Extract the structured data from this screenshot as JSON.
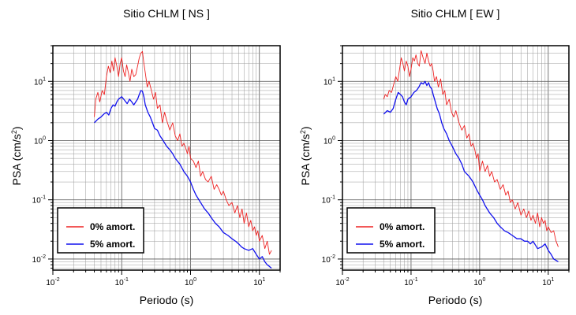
{
  "chart_data": [
    {
      "type": "line",
      "title": "Sitio CHLM [ NS ]",
      "xlabel": "Periodo (s)",
      "ylabel": "PSA (cm/s2)",
      "ylabel_base": "PSA (cm/s",
      "ylabel_sup": "2",
      "ylabel_tail": ")",
      "xscale": "log",
      "yscale": "log",
      "xlim": [
        0.01,
        20
      ],
      "ylim": [
        0.0065,
        40
      ],
      "grid": true,
      "legend_position": "bottom-left",
      "xticks": [
        {
          "value": 0.01,
          "base": "10",
          "exp": "-2"
        },
        {
          "value": 0.1,
          "base": "10",
          "exp": "-1"
        },
        {
          "value": 1,
          "base": "10",
          "exp": "0"
        },
        {
          "value": 10,
          "base": "10",
          "exp": "1"
        }
      ],
      "yticks": [
        {
          "value": 0.01,
          "base": "10",
          "exp": "-2"
        },
        {
          "value": 0.1,
          "base": "10",
          "exp": "-1"
        },
        {
          "value": 1,
          "base": "10",
          "exp": "0"
        },
        {
          "value": 10,
          "base": "10",
          "exp": "1"
        }
      ],
      "series": [
        {
          "name": "0% amort.",
          "color": "#ee2222",
          "x": [
            0.04,
            0.042,
            0.045,
            0.048,
            0.052,
            0.056,
            0.06,
            0.064,
            0.068,
            0.072,
            0.076,
            0.08,
            0.085,
            0.09,
            0.095,
            0.1,
            0.106,
            0.112,
            0.118,
            0.125,
            0.132,
            0.14,
            0.15,
            0.16,
            0.17,
            0.18,
            0.19,
            0.2,
            0.21,
            0.22,
            0.235,
            0.25,
            0.27,
            0.29,
            0.31,
            0.33,
            0.36,
            0.39,
            0.42,
            0.45,
            0.5,
            0.55,
            0.6,
            0.65,
            0.7,
            0.75,
            0.8,
            0.85,
            0.9,
            0.95,
            1.0,
            1.1,
            1.2,
            1.3,
            1.4,
            1.5,
            1.65,
            1.8,
            2.0,
            2.2,
            2.4,
            2.6,
            2.8,
            3.0,
            3.3,
            3.6,
            4.0,
            4.4,
            4.8,
            5.2,
            5.6,
            6.0,
            6.5,
            7.0,
            7.5,
            8.0,
            8.5,
            9.0,
            9.5,
            10.0,
            11.0,
            12.0,
            13.0,
            14.0,
            15.0
          ],
          "values": [
            2.5,
            5.0,
            6.5,
            4.5,
            7.0,
            6.0,
            12.0,
            18.0,
            14.0,
            22.0,
            15.0,
            25.0,
            18.0,
            12.0,
            20.0,
            25.0,
            15.0,
            12.0,
            19.0,
            14.0,
            10.0,
            16.0,
            12.0,
            13.0,
            18.0,
            25.0,
            30.0,
            32.0,
            20.0,
            14.0,
            8.0,
            10.0,
            7.0,
            5.0,
            6.5,
            3.5,
            4.0,
            2.0,
            3.0,
            2.2,
            1.5,
            2.0,
            1.2,
            1.0,
            1.3,
            0.8,
            0.9,
            0.75,
            0.6,
            0.8,
            0.5,
            0.45,
            0.35,
            0.45,
            0.25,
            0.3,
            0.22,
            0.2,
            0.25,
            0.15,
            0.18,
            0.15,
            0.12,
            0.14,
            0.1,
            0.08,
            0.09,
            0.06,
            0.08,
            0.05,
            0.07,
            0.04,
            0.06,
            0.035,
            0.045,
            0.03,
            0.035,
            0.025,
            0.03,
            0.02,
            0.025,
            0.015,
            0.02,
            0.012,
            0.014
          ]
        },
        {
          "name": "5% amort.",
          "color": "#1111ee",
          "x": [
            0.04,
            0.045,
            0.05,
            0.055,
            0.06,
            0.065,
            0.07,
            0.075,
            0.08,
            0.085,
            0.09,
            0.1,
            0.11,
            0.12,
            0.13,
            0.14,
            0.15,
            0.16,
            0.17,
            0.18,
            0.19,
            0.2,
            0.21,
            0.22,
            0.24,
            0.26,
            0.28,
            0.3,
            0.33,
            0.36,
            0.4,
            0.45,
            0.5,
            0.55,
            0.6,
            0.7,
            0.8,
            0.9,
            1.0,
            1.1,
            1.2,
            1.4,
            1.6,
            1.8,
            2.0,
            2.3,
            2.6,
            3.0,
            3.5,
            4.0,
            4.5,
            5.0,
            5.5,
            6.0,
            7.0,
            8.0,
            9.0,
            10.0,
            11.0,
            12.0,
            13.0,
            14.0,
            15.0
          ],
          "values": [
            2.0,
            2.3,
            2.5,
            2.8,
            3.0,
            2.7,
            3.5,
            4.0,
            3.8,
            4.5,
            5.0,
            5.5,
            4.8,
            4.2,
            5.0,
            4.5,
            4.0,
            4.5,
            5.0,
            6.0,
            7.0,
            6.8,
            5.5,
            4.0,
            3.0,
            2.5,
            2.0,
            1.6,
            1.5,
            1.2,
            1.0,
            0.8,
            0.7,
            0.6,
            0.5,
            0.4,
            0.3,
            0.25,
            0.2,
            0.15,
            0.12,
            0.09,
            0.07,
            0.06,
            0.05,
            0.04,
            0.035,
            0.028,
            0.025,
            0.022,
            0.02,
            0.018,
            0.016,
            0.015,
            0.014,
            0.015,
            0.012,
            0.01,
            0.011,
            0.009,
            0.008,
            0.0075,
            0.007
          ]
        }
      ]
    },
    {
      "type": "line",
      "title": "Sitio CHLM [ EW ]",
      "xlabel": "Periodo (s)",
      "ylabel": "PSA (cm/s2)",
      "ylabel_base": "PSA (cm/s",
      "ylabel_sup": "2",
      "ylabel_tail": ")",
      "xscale": "log",
      "yscale": "log",
      "xlim": [
        0.01,
        20
      ],
      "ylim": [
        0.0065,
        40
      ],
      "grid": true,
      "legend_position": "bottom-left",
      "xticks": [
        {
          "value": 0.01,
          "base": "10",
          "exp": "-2"
        },
        {
          "value": 0.1,
          "base": "10",
          "exp": "-1"
        },
        {
          "value": 1,
          "base": "10",
          "exp": "0"
        },
        {
          "value": 10,
          "base": "10",
          "exp": "1"
        }
      ],
      "yticks": [
        {
          "value": 0.01,
          "base": "10",
          "exp": "-2"
        },
        {
          "value": 0.1,
          "base": "10",
          "exp": "-1"
        },
        {
          "value": 1,
          "base": "10",
          "exp": "0"
        },
        {
          "value": 10,
          "base": "10",
          "exp": "1"
        }
      ],
      "series": [
        {
          "name": "0% amort.",
          "color": "#ee2222",
          "x": [
            0.04,
            0.042,
            0.045,
            0.048,
            0.052,
            0.056,
            0.06,
            0.064,
            0.068,
            0.072,
            0.076,
            0.08,
            0.085,
            0.09,
            0.095,
            0.1,
            0.106,
            0.112,
            0.118,
            0.125,
            0.132,
            0.14,
            0.15,
            0.16,
            0.17,
            0.18,
            0.19,
            0.2,
            0.21,
            0.22,
            0.235,
            0.25,
            0.27,
            0.29,
            0.31,
            0.33,
            0.36,
            0.39,
            0.42,
            0.45,
            0.5,
            0.55,
            0.6,
            0.65,
            0.7,
            0.75,
            0.8,
            0.85,
            0.9,
            0.95,
            1.0,
            1.1,
            1.2,
            1.3,
            1.4,
            1.5,
            1.65,
            1.8,
            2.0,
            2.2,
            2.4,
            2.6,
            2.8,
            3.0,
            3.3,
            3.6,
            4.0,
            4.4,
            4.8,
            5.2,
            5.6,
            6.0,
            6.5,
            7.0,
            7.5,
            8.0,
            8.5,
            9.0,
            9.5,
            10.0,
            11.0,
            12.0,
            13.0,
            14.0
          ],
          "values": [
            5.0,
            6.0,
            5.5,
            7.0,
            6.5,
            9.0,
            12.0,
            10.0,
            16.0,
            25.0,
            20.0,
            15.0,
            22.0,
            18.0,
            12.0,
            16.0,
            25.0,
            22.0,
            28.0,
            20.0,
            18.0,
            33.0,
            25.0,
            20.0,
            30.0,
            22.0,
            18.0,
            20.0,
            15.0,
            10.0,
            12.0,
            8.0,
            11.0,
            6.0,
            7.0,
            4.0,
            5.0,
            3.0,
            2.5,
            3.2,
            2.0,
            1.5,
            1.8,
            1.1,
            1.3,
            0.8,
            0.9,
            0.7,
            0.5,
            0.6,
            0.3,
            0.45,
            0.3,
            0.38,
            0.25,
            0.3,
            0.2,
            0.22,
            0.15,
            0.18,
            0.12,
            0.14,
            0.09,
            0.1,
            0.07,
            0.09,
            0.055,
            0.07,
            0.05,
            0.065,
            0.045,
            0.055,
            0.04,
            0.06,
            0.035,
            0.05,
            0.04,
            0.045,
            0.03,
            0.035,
            0.028,
            0.03,
            0.02,
            0.016
          ]
        },
        {
          "name": "5% amort.",
          "color": "#1111ee",
          "x": [
            0.04,
            0.045,
            0.05,
            0.055,
            0.06,
            0.065,
            0.07,
            0.075,
            0.08,
            0.085,
            0.09,
            0.1,
            0.11,
            0.12,
            0.13,
            0.14,
            0.15,
            0.16,
            0.17,
            0.18,
            0.19,
            0.2,
            0.21,
            0.22,
            0.24,
            0.26,
            0.28,
            0.3,
            0.33,
            0.36,
            0.4,
            0.45,
            0.5,
            0.55,
            0.6,
            0.7,
            0.8,
            0.9,
            1.0,
            1.1,
            1.2,
            1.4,
            1.6,
            1.8,
            2.0,
            2.3,
            2.6,
            3.0,
            3.5,
            4.0,
            4.5,
            5.0,
            5.5,
            6.0,
            7.0,
            8.0,
            9.0,
            10.0,
            11.0,
            12.0,
            13.0,
            14.0
          ],
          "values": [
            2.8,
            3.2,
            3.0,
            3.5,
            5.0,
            6.5,
            6.0,
            5.5,
            4.5,
            4.0,
            5.0,
            5.5,
            6.5,
            7.0,
            8.0,
            9.5,
            9.0,
            10.0,
            8.5,
            9.5,
            8.0,
            7.5,
            6.0,
            5.0,
            3.5,
            2.8,
            2.0,
            1.6,
            1.3,
            1.0,
            0.8,
            0.6,
            0.5,
            0.4,
            0.3,
            0.25,
            0.2,
            0.15,
            0.12,
            0.1,
            0.08,
            0.06,
            0.05,
            0.04,
            0.035,
            0.03,
            0.028,
            0.025,
            0.022,
            0.022,
            0.02,
            0.02,
            0.018,
            0.02,
            0.015,
            0.016,
            0.018,
            0.014,
            0.012,
            0.01,
            0.0095,
            0.009
          ]
        }
      ]
    }
  ]
}
